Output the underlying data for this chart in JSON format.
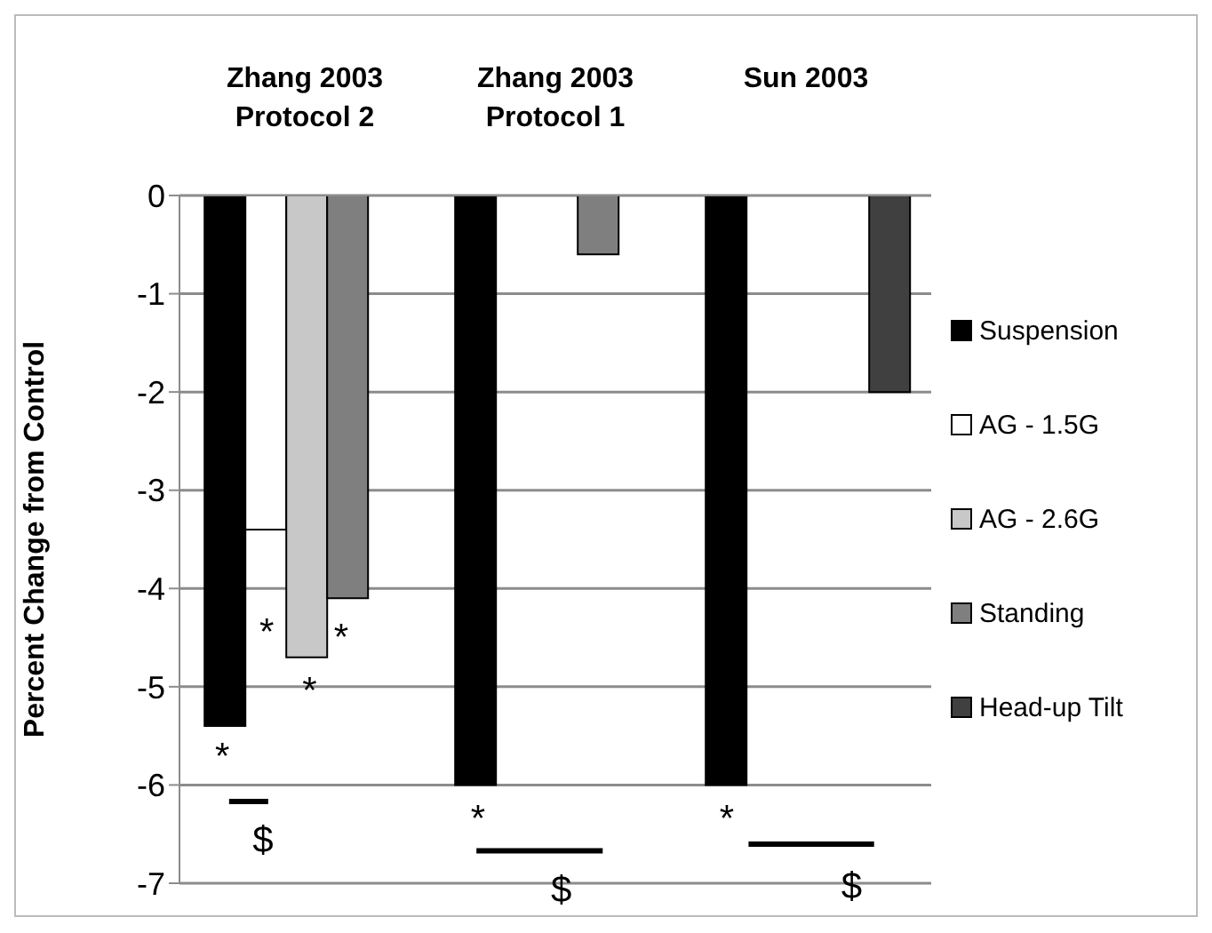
{
  "chart_data": {
    "type": "bar",
    "ylabel": "Percent Change from Control",
    "categories": [
      "Zhang 2003\nProtocol 2",
      "Zhang 2003\nProtocol 1",
      "Sun 2003"
    ],
    "series": [
      {
        "name": "Suspension",
        "color": "#000000",
        "values": [
          -5.4,
          -6,
          -6
        ]
      },
      {
        "name": "AG - 1.5G",
        "color": "#ffffff",
        "values": [
          -3.4,
          null,
          null
        ]
      },
      {
        "name": "AG - 2.6G",
        "color": "#c8c8c8",
        "values": [
          -4.7,
          null,
          null
        ]
      },
      {
        "name": "Standing",
        "color": "#7f7f7f",
        "values": [
          -4.1,
          -0.6,
          null
        ]
      },
      {
        "name": "Head-up Tilt",
        "color": "#404040",
        "values": [
          null,
          null,
          -2
        ]
      }
    ],
    "ylim": [
      -7,
      0
    ],
    "yticks": [
      -7,
      -6,
      -5,
      -4,
      -3,
      -2,
      -1,
      0
    ],
    "grid": "y",
    "legend": "right",
    "annotations": [
      "*",
      "*",
      "*",
      "*",
      "$",
      "*",
      "$",
      "*",
      "$"
    ]
  }
}
